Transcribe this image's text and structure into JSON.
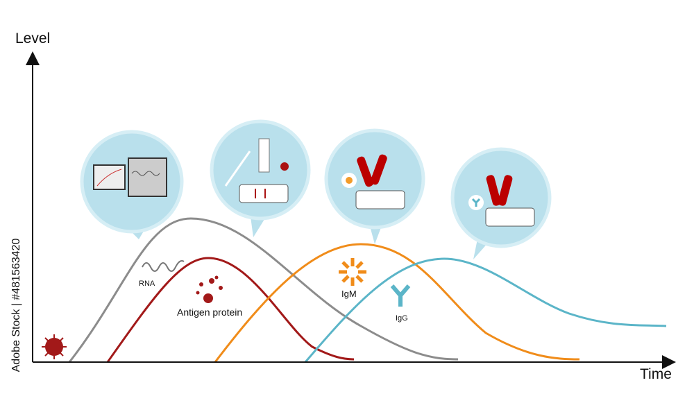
{
  "axes": {
    "y_label": "Level",
    "x_label": "Time"
  },
  "curves": [
    {
      "label": "RNA"
    },
    {
      "label": "Antigen protein"
    },
    {
      "label": "IgM"
    },
    {
      "label": "IgG"
    }
  ],
  "watermark": "Adobe Stock | #481563420"
}
